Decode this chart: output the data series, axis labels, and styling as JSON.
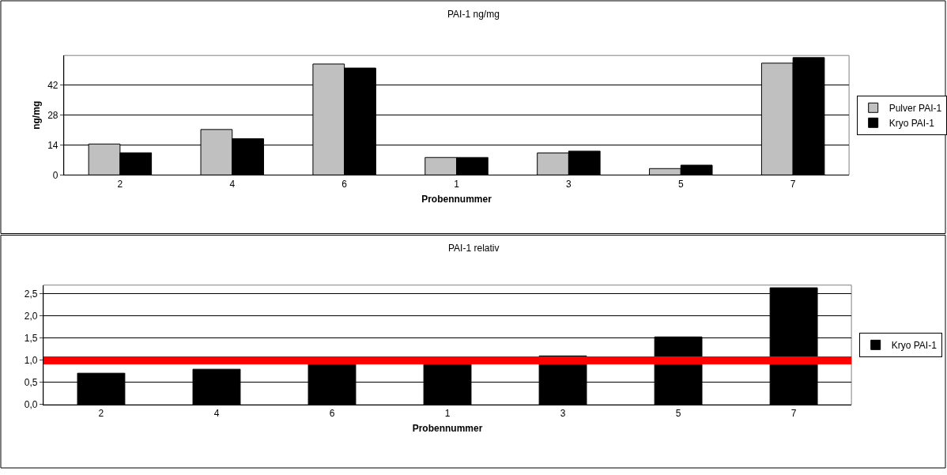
{
  "chart_data": [
    {
      "type": "bar",
      "title": "PAI-1 ng/mg",
      "xlabel": "Probennummer",
      "ylabel": "ng/mg",
      "categories": [
        "2",
        "4",
        "6",
        "1",
        "3",
        "5",
        "7"
      ],
      "series": [
        {
          "name": "Pulver PAI-1",
          "color": "#c0c0c0",
          "values": [
            14.5,
            21.3,
            52,
            8.2,
            10.3,
            3.0,
            52.4
          ]
        },
        {
          "name": "Kryo PAI-1",
          "color": "#000000",
          "values": [
            10.4,
            17.0,
            50.1,
            8.2,
            11.2,
            4.6,
            55
          ]
        }
      ],
      "ylim": [
        0,
        56
      ],
      "yticks": [
        0,
        14,
        28,
        42
      ],
      "grid": "y",
      "legend": "right"
    },
    {
      "type": "bar",
      "title": "PAI-1 relativ",
      "xlabel": "Probennummer",
      "categories": [
        "2",
        "4",
        "6",
        "1",
        "3",
        "5",
        "7"
      ],
      "series": [
        {
          "name": "Kryo PAI-1",
          "color": "#000000",
          "values": [
            0.71,
            0.8,
            0.97,
            0.97,
            1.1,
            1.53,
            2.64
          ]
        }
      ],
      "ylim": [
        0,
        2.7
      ],
      "yticks": [
        {
          "value": 0,
          "label": "0,0"
        },
        {
          "value": 0.5,
          "label": "0,5"
        },
        {
          "value": 1.0,
          "label": "1,0"
        },
        {
          "value": 1.5,
          "label": "1,5"
        },
        {
          "value": 2.0,
          "label": "2,0"
        },
        {
          "value": 2.5,
          "label": "2,5"
        }
      ],
      "ref_lines": [
        {
          "axis": "y",
          "value": 1.0,
          "color": "#ff0000"
        }
      ],
      "grid": "y",
      "legend": "right"
    }
  ]
}
